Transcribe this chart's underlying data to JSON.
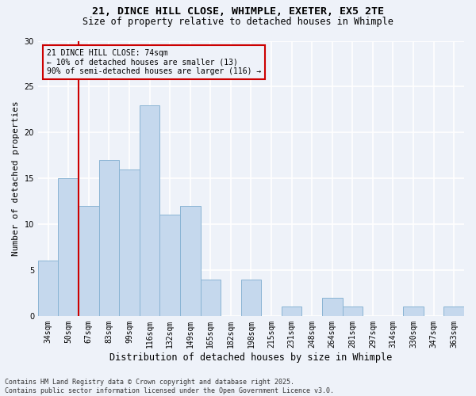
{
  "title_line1": "21, DINCE HILL CLOSE, WHIMPLE, EXETER, EX5 2TE",
  "title_line2": "Size of property relative to detached houses in Whimple",
  "xlabel": "Distribution of detached houses by size in Whimple",
  "ylabel": "Number of detached properties",
  "categories": [
    "34sqm",
    "50sqm",
    "67sqm",
    "83sqm",
    "99sqm",
    "116sqm",
    "132sqm",
    "149sqm",
    "165sqm",
    "182sqm",
    "198sqm",
    "215sqm",
    "231sqm",
    "248sqm",
    "264sqm",
    "281sqm",
    "297sqm",
    "314sqm",
    "330sqm",
    "347sqm",
    "363sqm"
  ],
  "values": [
    6,
    15,
    12,
    17,
    16,
    23,
    11,
    12,
    4,
    0,
    4,
    0,
    1,
    0,
    2,
    1,
    0,
    0,
    1,
    0,
    1
  ],
  "bar_color": "#c5d8ed",
  "bar_edge_color": "#8ab4d4",
  "annotation_text": "21 DINCE HILL CLOSE: 74sqm\n← 10% of detached houses are smaller (13)\n90% of semi-detached houses are larger (116) →",
  "vline_x_index": 1.5,
  "vline_color": "#cc0000",
  "box_color": "#cc0000",
  "ylim": [
    0,
    30
  ],
  "yticks": [
    0,
    5,
    10,
    15,
    20,
    25,
    30
  ],
  "footer": "Contains HM Land Registry data © Crown copyright and database right 2025.\nContains public sector information licensed under the Open Government Licence v3.0.",
  "background_color": "#eef2f9",
  "grid_color": "#ffffff",
  "bar_width": 1.0,
  "title1_fontsize": 9.5,
  "title2_fontsize": 8.5,
  "xlabel_fontsize": 8.5,
  "ylabel_fontsize": 8.0,
  "tick_fontsize": 7.0,
  "annot_fontsize": 7.0,
  "footer_fontsize": 6.0
}
